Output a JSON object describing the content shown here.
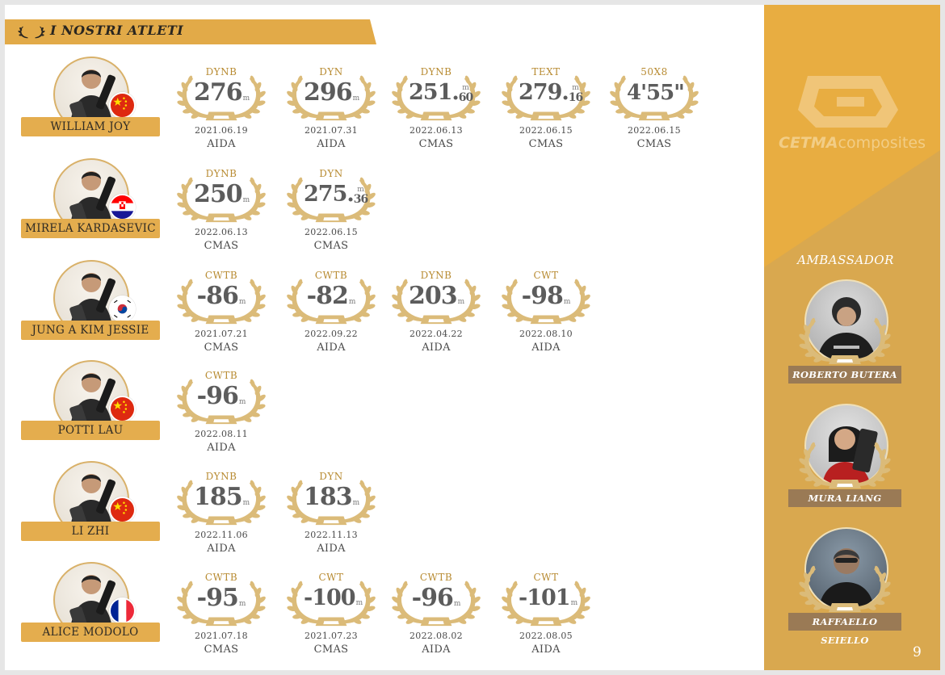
{
  "header": {
    "title": "I NOSTRI ATLETI"
  },
  "colors": {
    "gold": "#e2aa48",
    "wreath": "#dbbb79",
    "sidebar": "#d9a84f",
    "name_banner": "#e4ad4e"
  },
  "athletes": [
    {
      "name": "WILLIAM JOY",
      "flag": "china",
      "records": [
        {
          "discipline": "DYNB",
          "value": "276",
          "decimal": "",
          "unit": "m",
          "date": "2021.06.19",
          "org": "AIDA"
        },
        {
          "discipline": "DYN",
          "value": "296",
          "decimal": "",
          "unit": "m",
          "date": "2021.07.31",
          "org": "AIDA"
        },
        {
          "discipline": "DYNB",
          "value": "251",
          "decimal": "60",
          "unit": "m",
          "date": "2022.06.13",
          "org": "CMAS"
        },
        {
          "discipline": "TEXT",
          "value": "279",
          "decimal": "16",
          "unit": "m",
          "date": "2022.06.15",
          "org": "CMAS"
        },
        {
          "discipline": "50X8",
          "value": "4'55\"",
          "decimal": "",
          "unit": "",
          "date": "2022.06.15",
          "org": "CMAS"
        }
      ]
    },
    {
      "name": "MIRELA KARDASEVIC",
      "flag": "croatia",
      "records": [
        {
          "discipline": "DYNB",
          "value": "250",
          "decimal": "",
          "unit": "m",
          "date": "2022.06.13",
          "org": "CMAS"
        },
        {
          "discipline": "DYN",
          "value": "275",
          "decimal": "36",
          "unit": "m",
          "date": "2022.06.15",
          "org": "CMAS"
        }
      ]
    },
    {
      "name": "JUNG A KIM JESSIE",
      "flag": "korea",
      "records": [
        {
          "discipline": "CWTB",
          "value": "-86",
          "decimal": "",
          "unit": "m",
          "date": "2021.07.21",
          "org": "CMAS"
        },
        {
          "discipline": "CWTB",
          "value": "-82",
          "decimal": "",
          "unit": "m",
          "date": "2022.09.22",
          "org": "AIDA"
        },
        {
          "discipline": "DYNB",
          "value": "203",
          "decimal": "",
          "unit": "m",
          "date": "2022.04.22",
          "org": "AIDA"
        },
        {
          "discipline": "CWT",
          "value": "-98",
          "decimal": "",
          "unit": "m",
          "date": "2022.08.10",
          "org": "AIDA"
        }
      ]
    },
    {
      "name": "POTTI LAU",
      "flag": "china",
      "records": [
        {
          "discipline": "CWTB",
          "value": "-96",
          "decimal": "",
          "unit": "m",
          "date": "2022.08.11",
          "org": "AIDA"
        }
      ]
    },
    {
      "name": "LI ZHI",
      "flag": "china",
      "records": [
        {
          "discipline": "DYNB",
          "value": "185",
          "decimal": "",
          "unit": "m",
          "date": "2022.11.06",
          "org": "AIDA"
        },
        {
          "discipline": "DYN",
          "value": "183",
          "decimal": "",
          "unit": "m",
          "date": "2022.11.13",
          "org": "AIDA"
        }
      ]
    },
    {
      "name": "ALICE MODOLO",
      "flag": "france",
      "records": [
        {
          "discipline": "CWTB",
          "value": "-95",
          "decimal": "",
          "unit": "m",
          "date": "2021.07.18",
          "org": "CMAS"
        },
        {
          "discipline": "CWT",
          "value": "-100",
          "decimal": "",
          "unit": "m",
          "date": "2021.07.23",
          "org": "CMAS"
        },
        {
          "discipline": "CWTB",
          "value": "-96",
          "decimal": "",
          "unit": "m",
          "date": "2022.08.02",
          "org": "AIDA"
        },
        {
          "discipline": "CWT",
          "value": "-101",
          "decimal": "",
          "unit": "m",
          "date": "2022.08.05",
          "org": "AIDA"
        }
      ]
    }
  ],
  "sidebar": {
    "logo": {
      "brand": "CETMA",
      "suffix": "composites"
    },
    "ambassador_title": "AMBASSADOR",
    "ambassadors": [
      {
        "name": "ROBERTO BUTERA"
      },
      {
        "name": "MURA LIANG"
      },
      {
        "name": "RAFFAELLO SEIELLO"
      }
    ],
    "page_number": "9"
  }
}
